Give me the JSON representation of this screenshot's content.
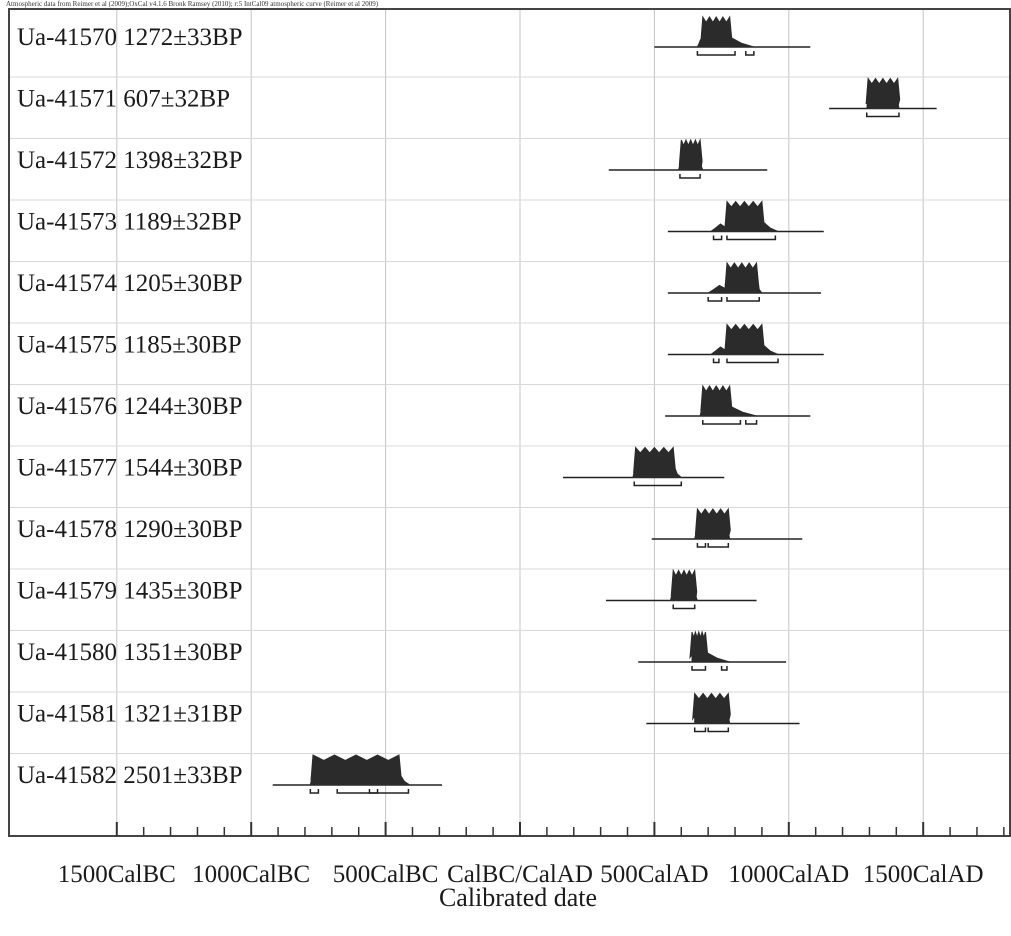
{
  "credit": "Atmospheric data from Reimer et al (2009);OxCal v4.1.6 Bronk Ramsey (2010); r:5 IntCal09 atmospheric curve (Reimer et al 2009)",
  "chart_data": {
    "type": "range_plot",
    "title": "",
    "xlabel": "Calibrated date",
    "ylabel": "",
    "xlim": [
      -1500,
      1800
    ],
    "x_ticks": [
      {
        "value": -1500,
        "label": "1500CalBC"
      },
      {
        "value": -1000,
        "label": "1000CalBC"
      },
      {
        "value": -500,
        "label": "500CalBC"
      },
      {
        "value": 0,
        "label": "CalBC/CalAD"
      },
      {
        "value": 500,
        "label": "500CalAD"
      },
      {
        "value": 1000,
        "label": "1000CalAD"
      },
      {
        "value": 1500,
        "label": "1500CalAD"
      }
    ],
    "grid": true,
    "samples": [
      {
        "label": "Ua-41570  1272±33BP",
        "curve_range": [
          500,
          1080
        ],
        "peak_range": [
          660,
          870
        ],
        "main_peak": [
          680,
          780
        ],
        "sigma2_ranges": [
          [
            660,
            800
          ],
          [
            840,
            870
          ]
        ]
      },
      {
        "label": "Ua-41571  607±32BP",
        "curve_range": [
          1150,
          1550
        ],
        "peak_range": [
          1290,
          1410
        ],
        "main_peak": [
          1295,
          1405
        ],
        "sigma2_ranges": [
          [
            1290,
            1410
          ]
        ]
      },
      {
        "label": "Ua-41572  1398±32BP",
        "curve_range": [
          330,
          920
        ],
        "peak_range": [
          590,
          680
        ],
        "main_peak": [
          600,
          670
        ],
        "sigma2_ranges": [
          [
            595,
            670
          ]
        ]
      },
      {
        "label": "Ua-41573  1189±32BP",
        "curve_range": [
          550,
          1130
        ],
        "peak_range": [
          710,
          960
        ],
        "main_peak": [
          770,
          900
        ],
        "sigma2_ranges": [
          [
            720,
            750
          ],
          [
            770,
            950
          ]
        ]
      },
      {
        "label": "Ua-41574  1205±30BP",
        "curve_range": [
          550,
          1120
        ],
        "peak_range": [
          700,
          900
        ],
        "main_peak": [
          770,
          880
        ],
        "sigma2_ranges": [
          [
            700,
            750
          ],
          [
            770,
            890
          ]
        ]
      },
      {
        "label": "Ua-41575  1185±30BP",
        "curve_range": [
          550,
          1130
        ],
        "peak_range": [
          710,
          960
        ],
        "main_peak": [
          770,
          900
        ],
        "sigma2_ranges": [
          [
            720,
            740
          ],
          [
            770,
            960
          ]
        ]
      },
      {
        "label": "Ua-41576  1244±30BP",
        "curve_range": [
          540,
          1080
        ],
        "peak_range": [
          670,
          880
        ],
        "main_peak": [
          680,
          780
        ],
        "sigma2_ranges": [
          [
            680,
            820
          ],
          [
            840,
            880
          ]
        ]
      },
      {
        "label": "Ua-41577  1544±30BP",
        "curve_range": [
          160,
          760
        ],
        "peak_range": [
          420,
          600
        ],
        "main_peak": [
          430,
          570
        ],
        "sigma2_ranges": [
          [
            425,
            600
          ]
        ]
      },
      {
        "label": "Ua-41578  1290±30BP",
        "curve_range": [
          490,
          1050
        ],
        "peak_range": [
          650,
          780
        ],
        "main_peak": [
          660,
          775
        ],
        "sigma2_ranges": [
          [
            660,
            690
          ],
          [
            700,
            775
          ]
        ]
      },
      {
        "label": "Ua-41579  1435±30BP",
        "curve_range": [
          320,
          880
        ],
        "peak_range": [
          560,
          660
        ],
        "main_peak": [
          570,
          650
        ],
        "sigma2_ranges": [
          [
            570,
            650
          ]
        ]
      },
      {
        "label": "Ua-41580  1351±30BP",
        "curve_range": [
          440,
          990
        ],
        "peak_range": [
          640,
          780
        ],
        "main_peak": [
          640,
          690
        ],
        "sigma2_ranges": [
          [
            640,
            690
          ],
          [
            750,
            770
          ]
        ]
      },
      {
        "label": "Ua-41581  1321±31BP",
        "curve_range": [
          470,
          1040
        ],
        "peak_range": [
          650,
          780
        ],
        "main_peak": [
          650,
          775
        ],
        "sigma2_ranges": [
          [
            650,
            690
          ],
          [
            700,
            775
          ]
        ]
      },
      {
        "label": "Ua-41582  2501±33BP",
        "curve_range": [
          -920,
          -290
        ],
        "peak_range": [
          -780,
          -410
        ],
        "main_peak": [
          -770,
          -450
        ],
        "sigma2_ranges": [
          [
            -780,
            -750
          ],
          [
            -680,
            -530
          ],
          [
            -560,
            -415
          ]
        ]
      }
    ]
  }
}
